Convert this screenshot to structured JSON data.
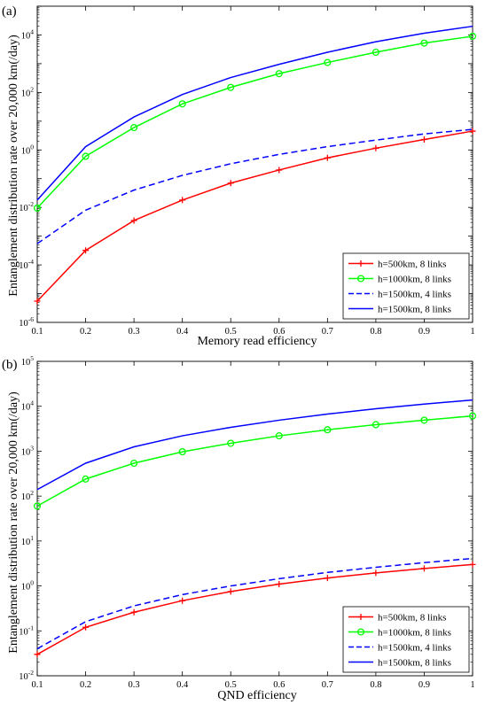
{
  "chart_data": [
    {
      "panel_label": "(a)",
      "type": "line",
      "xlabel": "Memory read efficiency",
      "ylabel": "Entanglement distribution rate over 20,000 km(/day)",
      "xlim": [
        0.1,
        1
      ],
      "x_ticks": [
        "0.1",
        "0.2",
        "0.3",
        "0.4",
        "0.5",
        "0.6",
        "0.7",
        "0.8",
        "0.9",
        "1"
      ],
      "y_scale": "log",
      "ylim_exp": [
        -6,
        5
      ],
      "y_tick_base": "10",
      "y_tick_exponents": [
        "-6",
        "-4",
        "-2",
        "0",
        "2",
        "4"
      ],
      "legend_position": "bottom-right",
      "x": [
        0.1,
        0.2,
        0.3,
        0.4,
        0.5,
        0.6,
        0.7,
        0.8,
        0.9,
        1.0
      ],
      "series": [
        {
          "name": "h=500km, 8 links",
          "color": "#ff0000",
          "dash": "solid",
          "marker": "plus",
          "values": [
            5.5e-06,
            0.00032,
            0.0035,
            0.018,
            0.07,
            0.2,
            0.53,
            1.15,
            2.3,
            4.5
          ]
        },
        {
          "name": "h=1000km, 8 links",
          "color": "#00ff00",
          "dash": "solid",
          "marker": "circle",
          "values": [
            0.0095,
            0.6,
            6,
            40,
            150,
            450,
            1100,
            2500,
            5200,
            9000
          ]
        },
        {
          "name": "h=1500km, 4 links",
          "color": "#0000ff",
          "dash": "dashed",
          "marker": "none",
          "values": [
            0.00055,
            0.008,
            0.04,
            0.13,
            0.33,
            0.7,
            1.3,
            2.2,
            3.6,
            5.2
          ]
        },
        {
          "name": "h=1500km, 8 links",
          "color": "#0000ff",
          "dash": "solid",
          "marker": "none",
          "values": [
            0.018,
            1.3,
            14,
            85,
            330,
            950,
            2500,
            5800,
            11500,
            20000
          ]
        }
      ]
    },
    {
      "panel_label": "(b)",
      "type": "line",
      "xlabel": "QND efficiency",
      "ylabel": "Entanglement distribution rate over 20,000 km(/day)",
      "xlim": [
        0.1,
        1
      ],
      "x_ticks": [
        "0.1",
        "0.2",
        "0.3",
        "0.4",
        "0.5",
        "0.6",
        "0.7",
        "0.8",
        "0.9",
        "1"
      ],
      "y_scale": "log",
      "ylim_exp": [
        -2,
        5
      ],
      "y_tick_base": "10",
      "y_tick_exponents": [
        "-2",
        "-1",
        "0",
        "1",
        "2",
        "3",
        "4",
        "5"
      ],
      "legend_position": "bottom-right",
      "x": [
        0.1,
        0.2,
        0.3,
        0.4,
        0.5,
        0.6,
        0.7,
        0.8,
        0.9,
        1.0
      ],
      "series": [
        {
          "name": "h=500km, 8 links",
          "color": "#ff0000",
          "dash": "solid",
          "marker": "plus",
          "values": [
            0.03,
            0.12,
            0.26,
            0.47,
            0.75,
            1.1,
            1.5,
            1.95,
            2.45,
            3.0
          ]
        },
        {
          "name": "h=1000km, 8 links",
          "color": "#00ff00",
          "dash": "solid",
          "marker": "circle",
          "values": [
            60,
            240,
            540,
            970,
            1500,
            2200,
            3000,
            3900,
            4900,
            6100
          ]
        },
        {
          "name": "h=1500km, 4 links",
          "color": "#0000ff",
          "dash": "dashed",
          "marker": "none",
          "values": [
            0.04,
            0.16,
            0.36,
            0.64,
            1.0,
            1.45,
            2.0,
            2.6,
            3.3,
            4.1
          ]
        },
        {
          "name": "h=1500km, 8 links",
          "color": "#0000ff",
          "dash": "solid",
          "marker": "none",
          "values": [
            140,
            540,
            1250,
            2200,
            3400,
            4900,
            6700,
            8800,
            11200,
            13800
          ]
        }
      ]
    }
  ]
}
